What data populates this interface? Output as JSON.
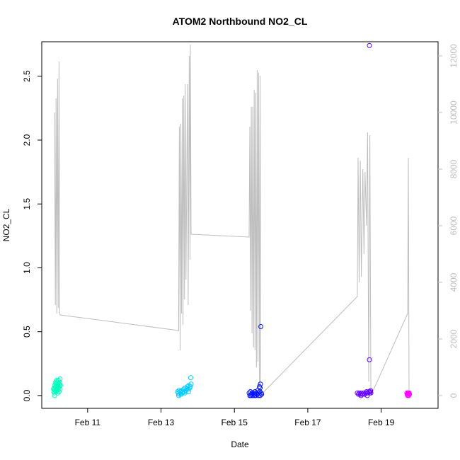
{
  "chart_data": {
    "type": "scatter",
    "title": "ATOM2 Northbound NO2_CL",
    "xlabel": "Date",
    "ylabel": "NO2_CL",
    "x_ticks": [
      "Feb 11",
      "Feb 13",
      "Feb 15",
      "Feb 17",
      "Feb 19"
    ],
    "x_tick_days": [
      11,
      13,
      15,
      17,
      19
    ],
    "xlim": [
      9.75,
      20.55
    ],
    "ylim": [
      -0.1,
      2.77
    ],
    "y_ticks": [
      0.0,
      0.5,
      1.0,
      1.5,
      2.0,
      2.5
    ],
    "y_tick_labels": [
      "0.0",
      "0.5",
      "1.0",
      "1.5",
      "2.0",
      "2.5"
    ],
    "y2lim": [
      -450,
      12500
    ],
    "y2_ticks": [
      0,
      2000,
      4000,
      6000,
      8000,
      10000,
      12000
    ],
    "y2_tick_labels": [
      "0",
      "2000",
      "4000",
      "6000",
      "8000",
      "10000",
      "12000"
    ],
    "secondary_series": {
      "color": "#bebebe",
      "points": [
        [
          10.1,
          10000
        ],
        [
          10.12,
          3200
        ],
        [
          10.14,
          10500
        ],
        [
          10.16,
          2900
        ],
        [
          10.18,
          11200
        ],
        [
          10.2,
          3100
        ],
        [
          10.22,
          11800
        ],
        [
          10.24,
          2900
        ],
        [
          10.25,
          2850
        ],
        [
          13.48,
          2300
        ],
        [
          13.5,
          9500
        ],
        [
          13.52,
          1600
        ],
        [
          13.54,
          9600
        ],
        [
          13.56,
          2900
        ],
        [
          13.58,
          10500
        ],
        [
          13.6,
          2500
        ],
        [
          13.62,
          10600
        ],
        [
          13.64,
          3400
        ],
        [
          13.66,
          11000
        ],
        [
          13.68,
          4100
        ],
        [
          13.72,
          11000
        ],
        [
          13.74,
          3200
        ],
        [
          13.77,
          12000
        ],
        [
          13.79,
          4800
        ],
        [
          13.8,
          12400
        ],
        [
          13.82,
          5700
        ],
        [
          15.4,
          5600
        ],
        [
          15.42,
          9500
        ],
        [
          15.44,
          3000
        ],
        [
          15.46,
          10200
        ],
        [
          15.48,
          2200
        ],
        [
          15.5,
          10200
        ],
        [
          15.52,
          1700
        ],
        [
          15.54,
          10800
        ],
        [
          15.56,
          1600
        ],
        [
          15.58,
          10700
        ],
        [
          15.6,
          1000
        ],
        [
          15.62,
          11500
        ],
        [
          15.64,
          1200
        ],
        [
          15.66,
          11400
        ],
        [
          15.68,
          300
        ],
        [
          15.7,
          11300
        ],
        [
          15.72,
          100
        ],
        [
          15.74,
          50
        ],
        [
          18.35,
          3500
        ],
        [
          18.37,
          8400
        ],
        [
          18.4,
          4000
        ],
        [
          18.43,
          8300
        ],
        [
          18.46,
          4200
        ],
        [
          18.5,
          8000
        ],
        [
          18.53,
          5000
        ],
        [
          18.56,
          7900
        ],
        [
          18.6,
          6000
        ],
        [
          18.63,
          9300
        ],
        [
          18.66,
          500
        ],
        [
          18.69,
          9200
        ],
        [
          18.72,
          100
        ],
        [
          18.74,
          50
        ],
        [
          19.72,
          2900
        ],
        [
          19.74,
          8400
        ],
        [
          19.76,
          100
        ]
      ]
    },
    "series": [
      {
        "color": "#00ffbb",
        "points": [
          [
            10.07,
            0.05
          ],
          [
            10.08,
            0.03
          ],
          [
            10.09,
            0.06
          ],
          [
            10.1,
            0.08
          ],
          [
            10.1,
            0.02
          ],
          [
            10.11,
            0.05
          ],
          [
            10.12,
            0.1
          ],
          [
            10.12,
            0.04
          ],
          [
            10.13,
            0.07
          ],
          [
            10.14,
            0.11
          ],
          [
            10.14,
            0.03
          ],
          [
            10.15,
            0.06
          ],
          [
            10.16,
            0.09
          ],
          [
            10.16,
            0.12
          ],
          [
            10.17,
            0.04
          ],
          [
            10.18,
            0.07
          ],
          [
            10.18,
            0.1
          ],
          [
            10.19,
            0.05
          ],
          [
            10.2,
            0.08
          ],
          [
            10.2,
            0.12
          ],
          [
            10.21,
            0.06
          ],
          [
            10.22,
            0.09
          ],
          [
            10.22,
            0.03
          ],
          [
            10.23,
            0.07
          ],
          [
            10.24,
            0.1
          ],
          [
            10.25,
            0.13
          ],
          [
            10.25,
            0.05
          ],
          [
            10.26,
            0.08
          ],
          [
            10.1,
            0.0
          ],
          [
            10.18,
            0.02
          ]
        ]
      },
      {
        "color": "#00ccff",
        "points": [
          [
            13.45,
            0.03
          ],
          [
            13.47,
            0.02
          ],
          [
            13.49,
            0.04
          ],
          [
            13.5,
            0.01
          ],
          [
            13.52,
            0.03
          ],
          [
            13.54,
            0.02
          ],
          [
            13.56,
            0.04
          ],
          [
            13.58,
            0.02
          ],
          [
            13.6,
            0.03
          ],
          [
            13.62,
            0.05
          ],
          [
            13.64,
            0.03
          ],
          [
            13.66,
            0.06
          ],
          [
            13.68,
            0.04
          ],
          [
            13.7,
            0.05
          ],
          [
            13.72,
            0.07
          ],
          [
            13.74,
            0.05
          ],
          [
            13.76,
            0.08
          ],
          [
            13.78,
            0.06
          ],
          [
            13.8,
            0.07
          ],
          [
            13.81,
            0.14
          ],
          [
            13.82,
            0.09
          ],
          [
            13.48,
            0.0
          ],
          [
            13.55,
            0.01
          ],
          [
            13.65,
            0.02
          ],
          [
            13.75,
            0.03
          ]
        ]
      },
      {
        "color": "#0011ff",
        "points": [
          [
            15.4,
            0.02
          ],
          [
            15.42,
            0.0
          ],
          [
            15.44,
            0.03
          ],
          [
            15.46,
            0.01
          ],
          [
            15.48,
            0.02
          ],
          [
            15.5,
            0.0
          ],
          [
            15.52,
            0.02
          ],
          [
            15.54,
            0.01
          ],
          [
            15.56,
            0.03
          ],
          [
            15.58,
            0.0
          ],
          [
            15.6,
            0.02
          ],
          [
            15.62,
            0.01
          ],
          [
            15.64,
            0.04
          ],
          [
            15.66,
            0.02
          ],
          [
            15.68,
            0.07
          ],
          [
            15.69,
            0.03
          ],
          [
            15.7,
            0.06
          ],
          [
            15.71,
            0.09
          ],
          [
            15.72,
            0.54
          ],
          [
            15.73,
            0.02
          ],
          [
            15.74,
            0.01
          ],
          [
            15.45,
            0.0
          ],
          [
            15.55,
            0.0
          ],
          [
            15.65,
            0.0
          ],
          [
            15.7,
            0.0
          ]
        ]
      },
      {
        "color": "#6600ff",
        "points": [
          [
            18.35,
            0.02
          ],
          [
            18.38,
            0.01
          ],
          [
            18.4,
            0.02
          ],
          [
            18.43,
            0.01
          ],
          [
            18.46,
            0.02
          ],
          [
            18.49,
            0.01
          ],
          [
            18.52,
            0.02
          ],
          [
            18.55,
            0.01
          ],
          [
            18.58,
            0.02
          ],
          [
            18.6,
            0.03
          ],
          [
            18.63,
            0.02
          ],
          [
            18.66,
            0.03
          ],
          [
            18.68,
            0.28
          ],
          [
            18.69,
            0.02
          ],
          [
            18.7,
            0.03
          ],
          [
            18.71,
            0.04
          ],
          [
            18.72,
            0.02
          ],
          [
            18.68,
            2.74
          ],
          [
            18.45,
            0.0
          ],
          [
            18.62,
            0.0
          ]
        ]
      },
      {
        "color": "#ff00ff",
        "points": [
          [
            19.7,
            0.02
          ],
          [
            19.71,
            0.01
          ],
          [
            19.72,
            0.0
          ],
          [
            19.73,
            0.02
          ],
          [
            19.74,
            0.01
          ],
          [
            19.75,
            0.0
          ],
          [
            19.76,
            0.02
          ],
          [
            19.77,
            0.01
          ],
          [
            19.72,
            0.01
          ],
          [
            19.75,
            0.02
          ]
        ]
      }
    ],
    "grid": false,
    "legend": "none"
  }
}
